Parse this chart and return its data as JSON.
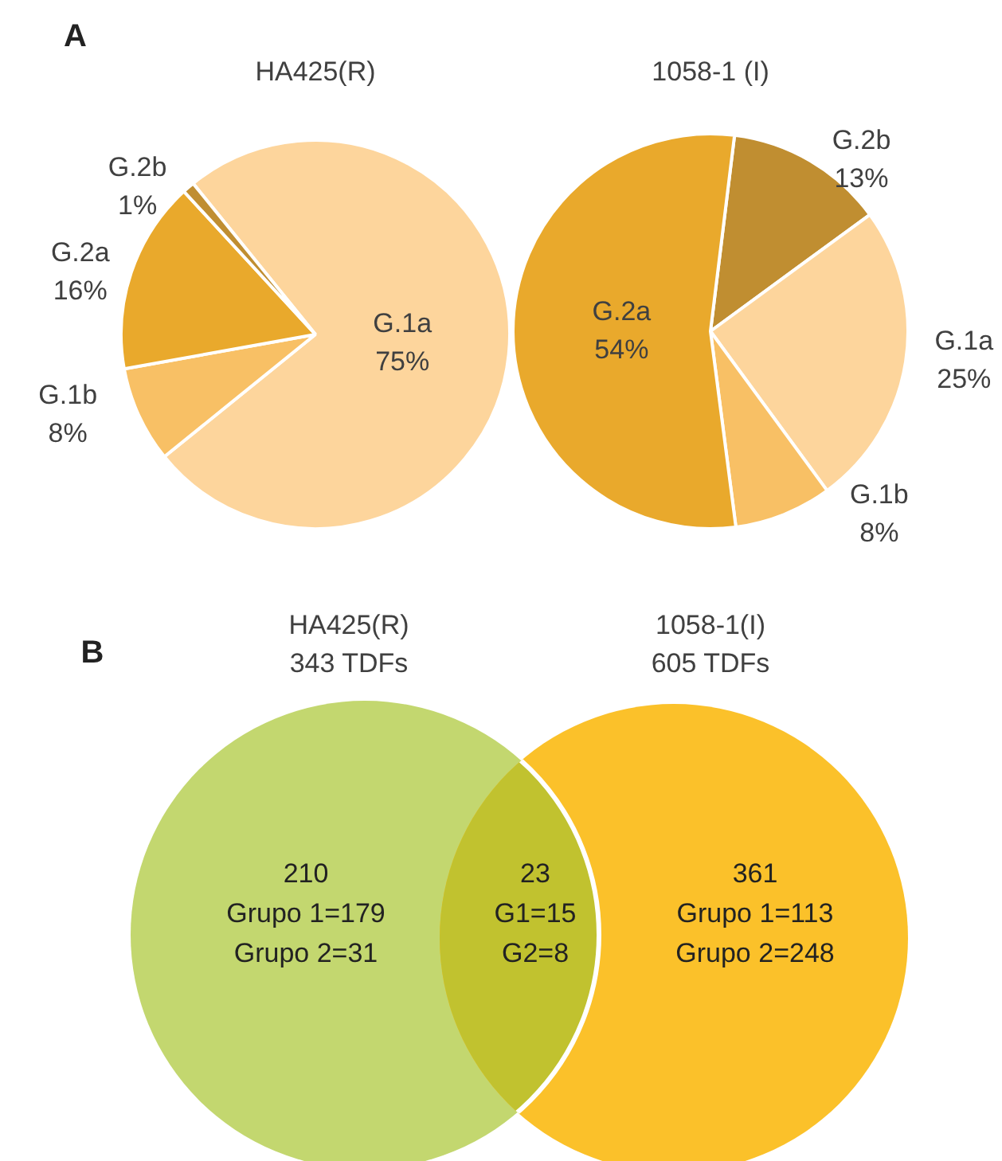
{
  "chart_data": [
    {
      "type": "pie",
      "title": "HA425(R)",
      "annotations": [
        "A"
      ],
      "categories": [
        "G.1a",
        "G.1b",
        "G.2a",
        "G.2b"
      ],
      "values": [
        75,
        8,
        16,
        1
      ],
      "value_labels": [
        "75%",
        "8%",
        "16%",
        "1%"
      ],
      "colors": [
        "#fdd59c",
        "#f8c065",
        "#e9a92c",
        "#c08e31"
      ],
      "legend": false
    },
    {
      "type": "pie",
      "title": "1058-1 (I)",
      "categories": [
        "G.2b",
        "G.1a",
        "G.1b",
        "G.2a"
      ],
      "values": [
        13,
        25,
        8,
        54
      ],
      "value_labels": [
        "13%",
        "25%",
        "8%",
        "54%"
      ],
      "colors": [
        "#c08e31",
        "#fdd59c",
        "#f8c065",
        "#e9a92c"
      ],
      "legend": false
    },
    {
      "type": "other",
      "categories": [
        "HA425(R)",
        "1058-1(I)"
      ],
      "colors": [
        "#c3d76f",
        "#c1c22f",
        "#fbc12a"
      ],
      "annotations": [
        "B",
        "343 TDFs",
        "605 TDFs",
        "210\nGrupo 1=179\nGrupo 2=31",
        "23\nG1=15\nG2=8",
        "361\nGrupo 1=113\nGrupo 2=248"
      ]
    }
  ]
}
